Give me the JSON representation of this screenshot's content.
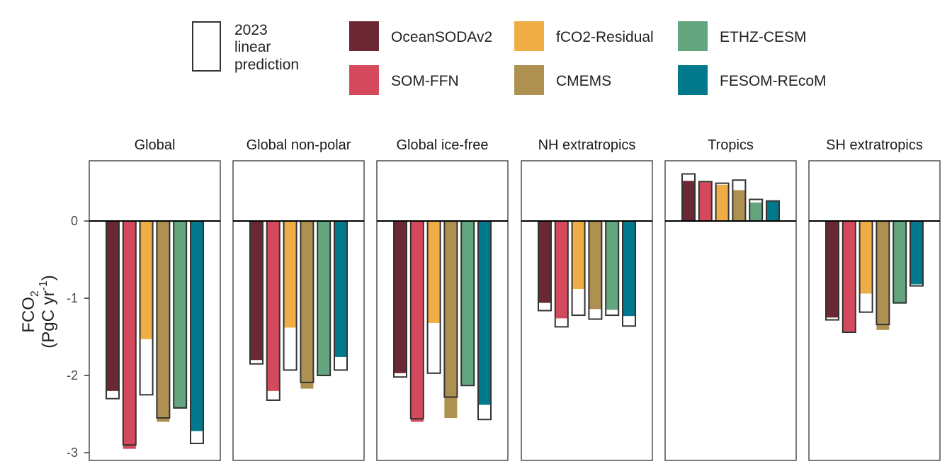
{
  "chart_data": {
    "type": "bar",
    "ylabel_main": "FCO",
    "ylabel_sub": "2",
    "ylabel_units_pre": "(PgC yr",
    "ylabel_units_sup": "-1",
    "ylabel_units_post": ")",
    "ylim": [
      -3.1,
      0.78
    ],
    "yticks": [
      0,
      -1,
      -2,
      -3
    ],
    "ytick_labels": [
      "0",
      "-1",
      "-2",
      "-3"
    ],
    "legend": {
      "outline_label": [
        "2023",
        "linear",
        "prediction"
      ],
      "products": [
        "OceanSODAv2",
        "fCO2-Residual",
        "ETHZ-CESM",
        "SOM-FFN",
        "CMEMS",
        "FESOM-REcoM"
      ]
    },
    "product_order": [
      "OceanSODAv2",
      "SOM-FFN",
      "fCO2-Residual",
      "CMEMS",
      "ETHZ-CESM",
      "FESOM-REcoM"
    ],
    "colors": {
      "OceanSODAv2": "#6b2834",
      "SOM-FFN": "#d4495c",
      "fCO2-Residual": "#efad45",
      "CMEMS": "#ae9051",
      "ETHZ-CESM": "#63a57e",
      "FESOM-REcoM": "#00798c"
    },
    "panels": [
      {
        "title": "Global",
        "values_2023": [
          -2.2,
          -2.95,
          -1.53,
          -2.6,
          -2.43,
          -2.72
        ],
        "linear_prediction": [
          -2.3,
          -2.9,
          -2.25,
          -2.55,
          -2.42,
          -2.88
        ]
      },
      {
        "title": "Global non-polar",
        "values_2023": [
          -1.8,
          -2.2,
          -1.38,
          -2.17,
          -2.0,
          -1.76
        ],
        "linear_prediction": [
          -1.85,
          -2.32,
          -1.93,
          -2.09,
          -2.0,
          -1.93
        ]
      },
      {
        "title": "Global ice-free",
        "values_2023": [
          -1.97,
          -2.6,
          -1.32,
          -2.55,
          -2.12,
          -2.38
        ],
        "linear_prediction": [
          -2.02,
          -2.56,
          -1.97,
          -2.28,
          -2.13,
          -2.57
        ]
      },
      {
        "title": "NH extratropics",
        "values_2023": [
          -1.06,
          -1.26,
          -0.88,
          -1.14,
          -1.15,
          -1.23
        ],
        "linear_prediction": [
          -1.16,
          -1.37,
          -1.22,
          -1.27,
          -1.22,
          -1.36
        ]
      },
      {
        "title": "Tropics",
        "values_2023": [
          0.52,
          0.5,
          0.47,
          0.4,
          0.24,
          0.26
        ],
        "linear_prediction": [
          0.61,
          0.51,
          0.49,
          0.53,
          0.28,
          0.26
        ]
      },
      {
        "title": "SH extratropics",
        "values_2023": [
          -1.25,
          -1.43,
          -0.94,
          -1.41,
          -1.07,
          -0.82
        ],
        "linear_prediction": [
          -1.28,
          -1.44,
          -1.18,
          -1.34,
          -1.06,
          -0.84
        ]
      }
    ]
  }
}
